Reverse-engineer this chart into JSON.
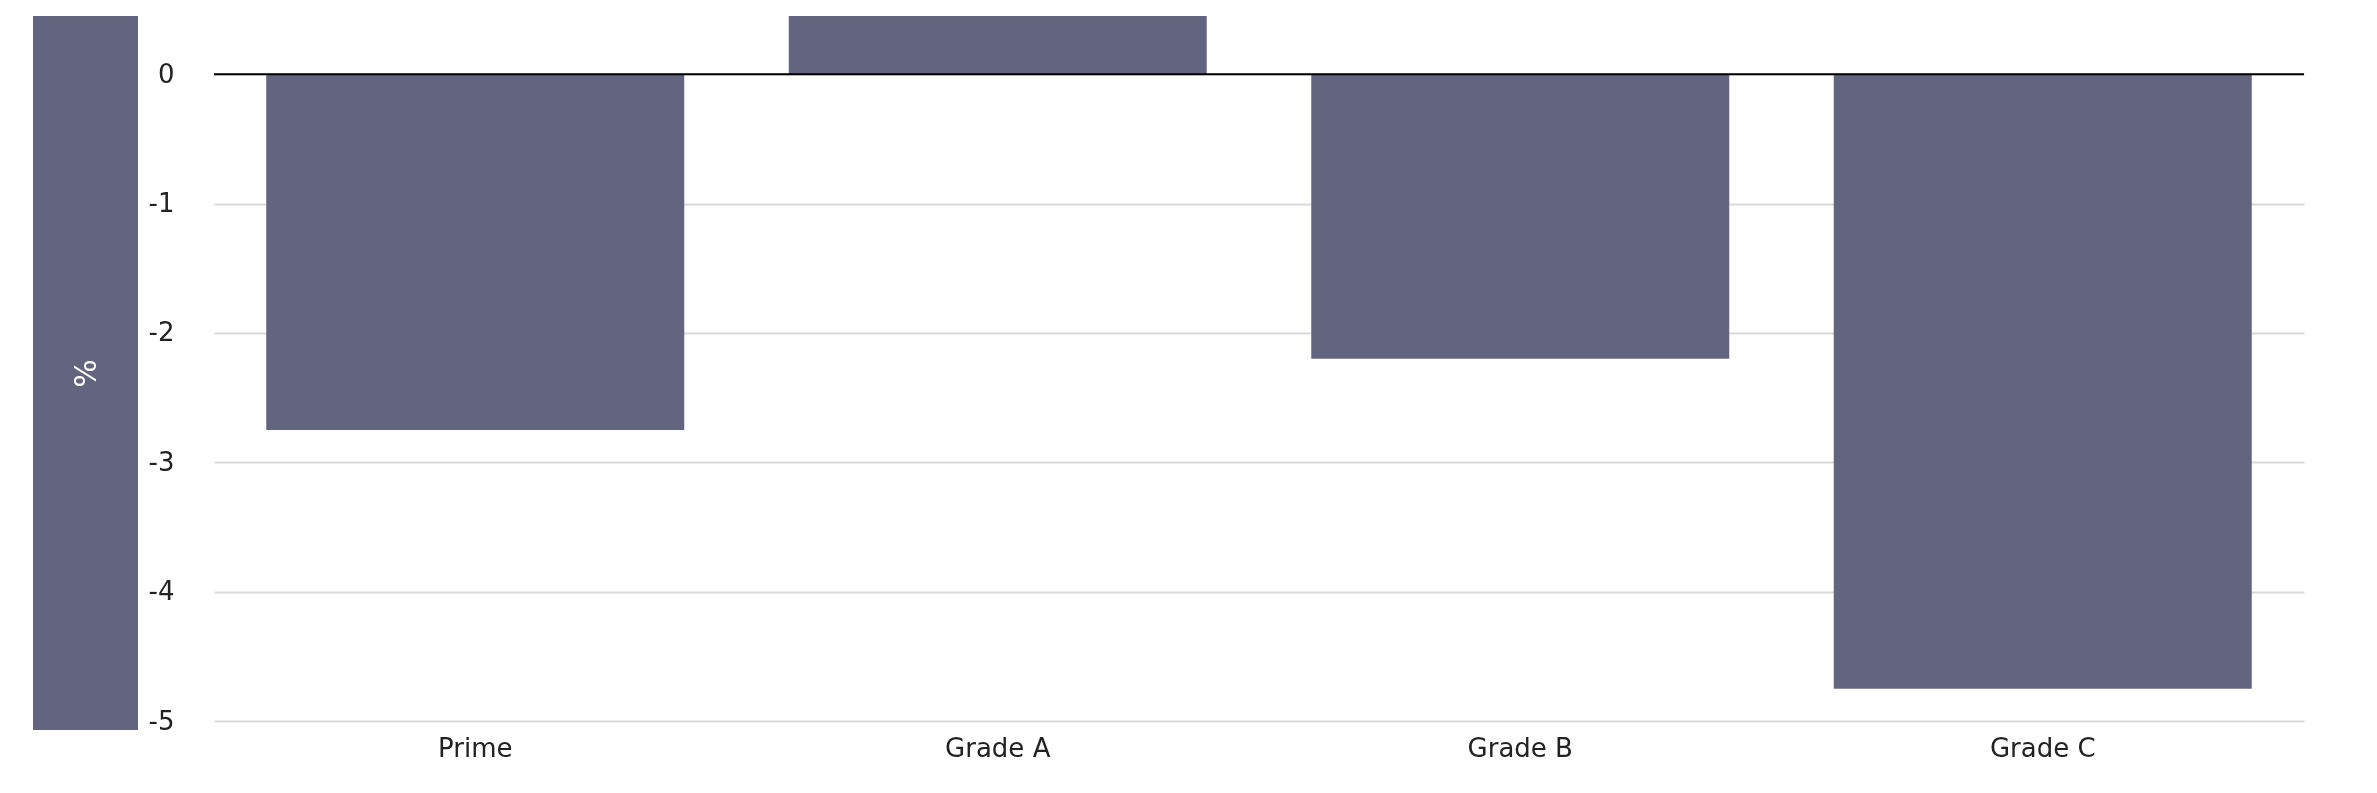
{
  "chart_data": {
    "type": "bar",
    "ylabel": "%",
    "categories": [
      "Prime",
      "Grade A",
      "Grade B",
      "Grade C"
    ],
    "values": [
      -2.75,
      0.45,
      -2.2,
      -4.75
    ],
    "color": "#63657e",
    "ylim": [
      -5,
      0.45
    ],
    "yticks": [
      0,
      -1,
      -2,
      -3,
      -4,
      -5
    ],
    "grid": "y",
    "ref_lines": [
      {
        "axis": "y",
        "value": 0,
        "color": "#000000"
      }
    ]
  }
}
